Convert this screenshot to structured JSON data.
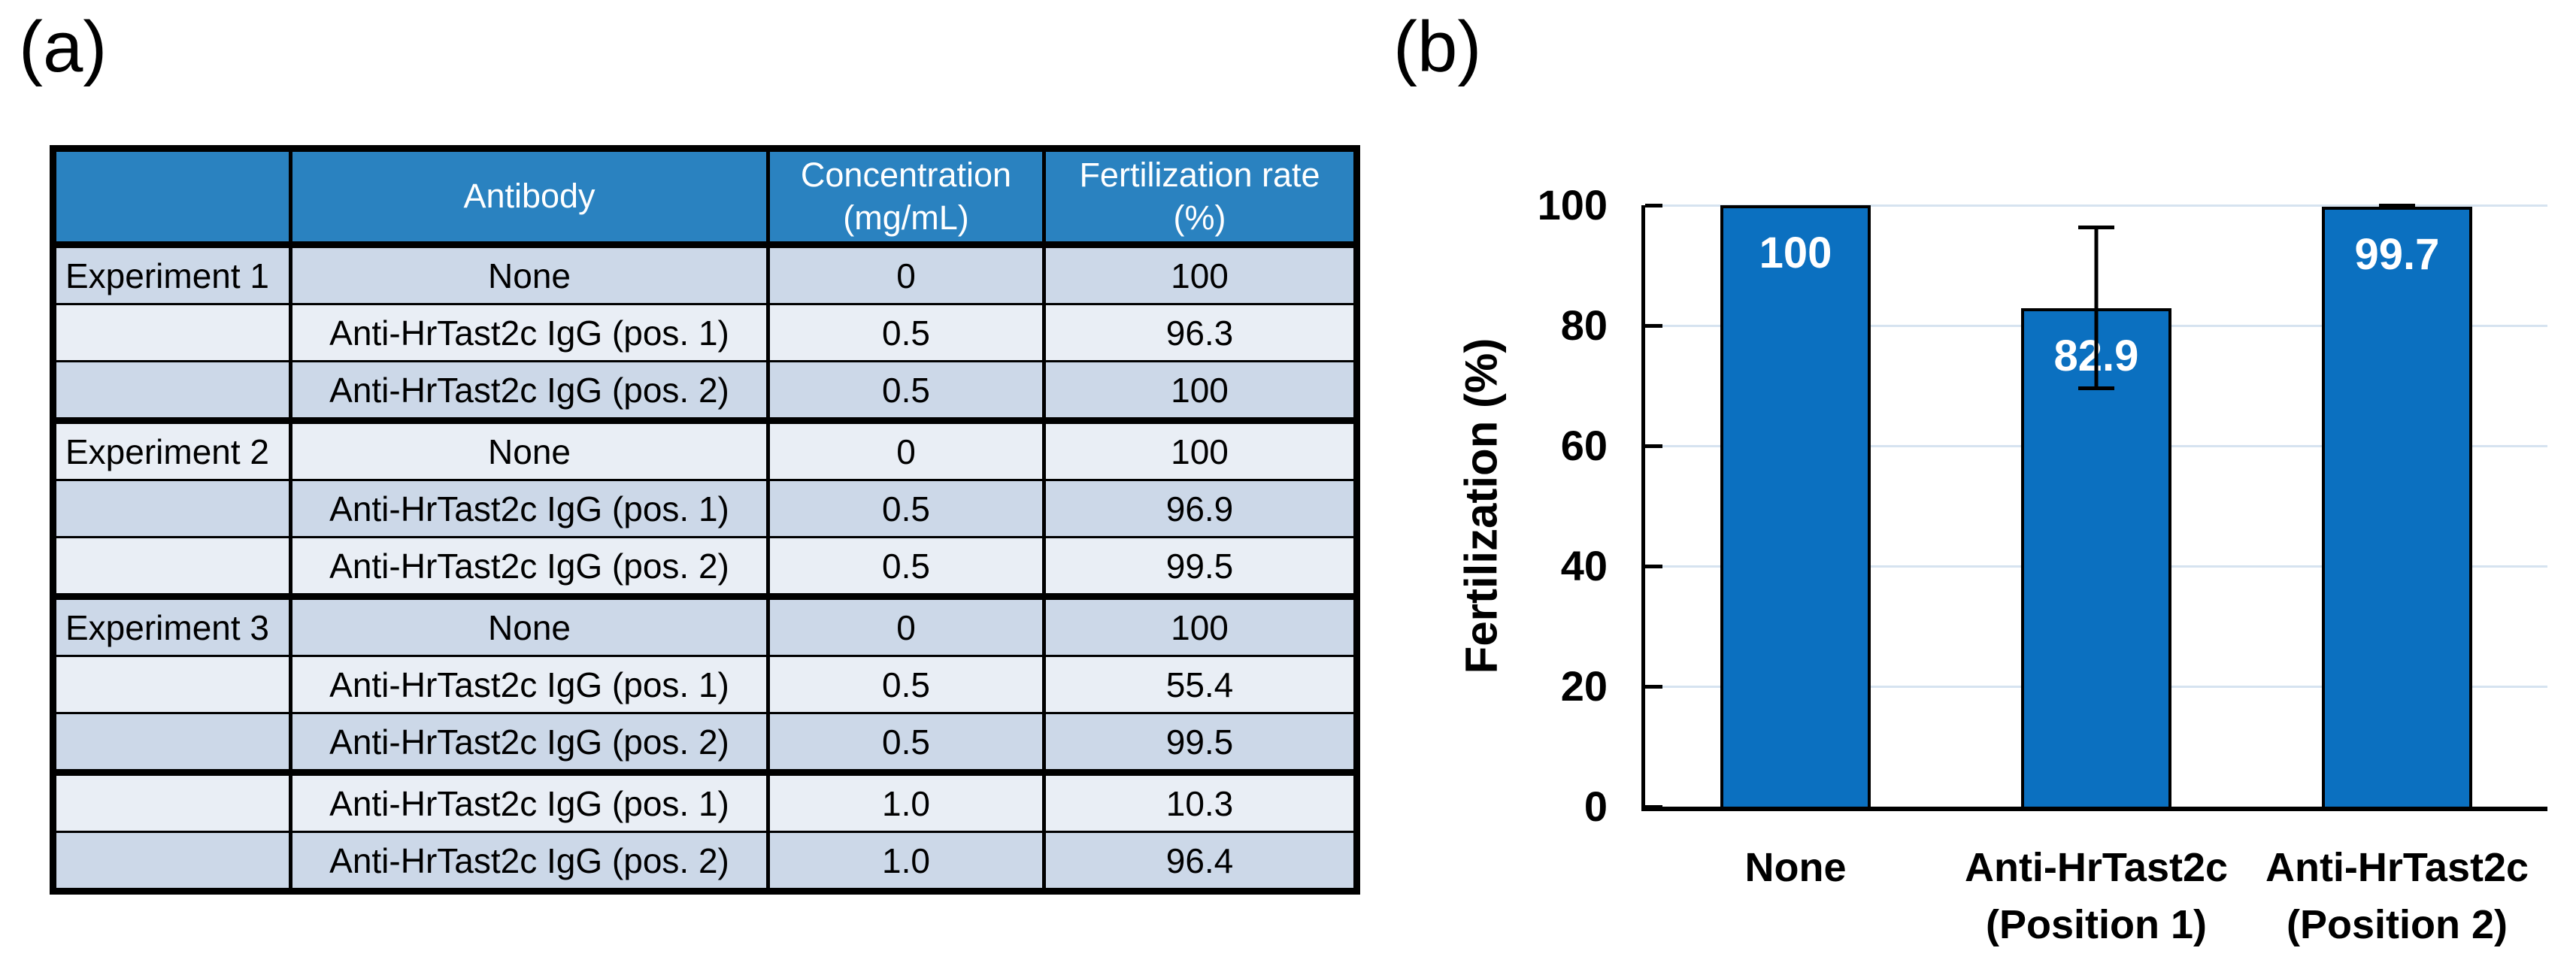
{
  "panel_a": {
    "label": "(a)",
    "table": {
      "headers": [
        "",
        "Antibody",
        "Concentration\n(mg/mL)",
        "Fertilization rate\n(%)"
      ],
      "rows": [
        {
          "experiment": "Experiment 1",
          "antibody": "None",
          "concentration": "0",
          "rate": "100",
          "group_end": false
        },
        {
          "experiment": "",
          "antibody": "Anti-HrTast2c IgG (pos. 1)",
          "concentration": "0.5",
          "rate": "96.3",
          "group_end": false
        },
        {
          "experiment": "",
          "antibody": "Anti-HrTast2c IgG (pos. 2)",
          "concentration": "0.5",
          "rate": "100",
          "group_end": true
        },
        {
          "experiment": "Experiment 2",
          "antibody": "None",
          "concentration": "0",
          "rate": "100",
          "group_end": false
        },
        {
          "experiment": "",
          "antibody": "Anti-HrTast2c IgG (pos. 1)",
          "concentration": "0.5",
          "rate": "96.9",
          "group_end": false
        },
        {
          "experiment": "",
          "antibody": "Anti-HrTast2c IgG (pos. 2)",
          "concentration": "0.5",
          "rate": "99.5",
          "group_end": true
        },
        {
          "experiment": "Experiment 3",
          "antibody": "None",
          "concentration": "0",
          "rate": "100",
          "group_end": false
        },
        {
          "experiment": "",
          "antibody": "Anti-HrTast2c IgG (pos. 1)",
          "concentration": "0.5",
          "rate": "55.4",
          "group_end": false
        },
        {
          "experiment": "",
          "antibody": "Anti-HrTast2c IgG (pos. 2)",
          "concentration": "0.5",
          "rate": "99.5",
          "group_end": true
        },
        {
          "experiment": "",
          "antibody": "Anti-HrTast2c IgG (pos. 1)",
          "concentration": "1.0",
          "rate": "10.3",
          "group_end": false
        },
        {
          "experiment": "",
          "antibody": "Anti-HrTast2c IgG (pos. 2)",
          "concentration": "1.0",
          "rate": "96.4",
          "group_end": false
        }
      ]
    }
  },
  "panel_b": {
    "label": "(b)",
    "chart_data": {
      "type": "bar",
      "categories": [
        "None",
        "Anti-HrTast2c\n(Position 1)",
        "Anti-HrTast2c\n(Position 2)"
      ],
      "values": [
        100,
        82.9,
        99.7
      ],
      "value_labels": [
        "100",
        "82.9",
        "99.7"
      ],
      "errors": [
        0,
        13.7,
        0.5
      ],
      "title": "",
      "xlabel": "",
      "ylabel": "Fertilization (%)",
      "yticks": [
        0,
        20,
        40,
        60,
        80,
        100
      ],
      "ylim": [
        0,
        100
      ],
      "grid": true,
      "legend": "none"
    }
  },
  "colors": {
    "table_header_bg": "#2a82c0",
    "table_row_dark": "#ccd8e8",
    "table_row_light": "#e9eef5",
    "bar_fill": "#0b70c0",
    "gridline": "#d6e3f0",
    "axis": "#000000"
  }
}
